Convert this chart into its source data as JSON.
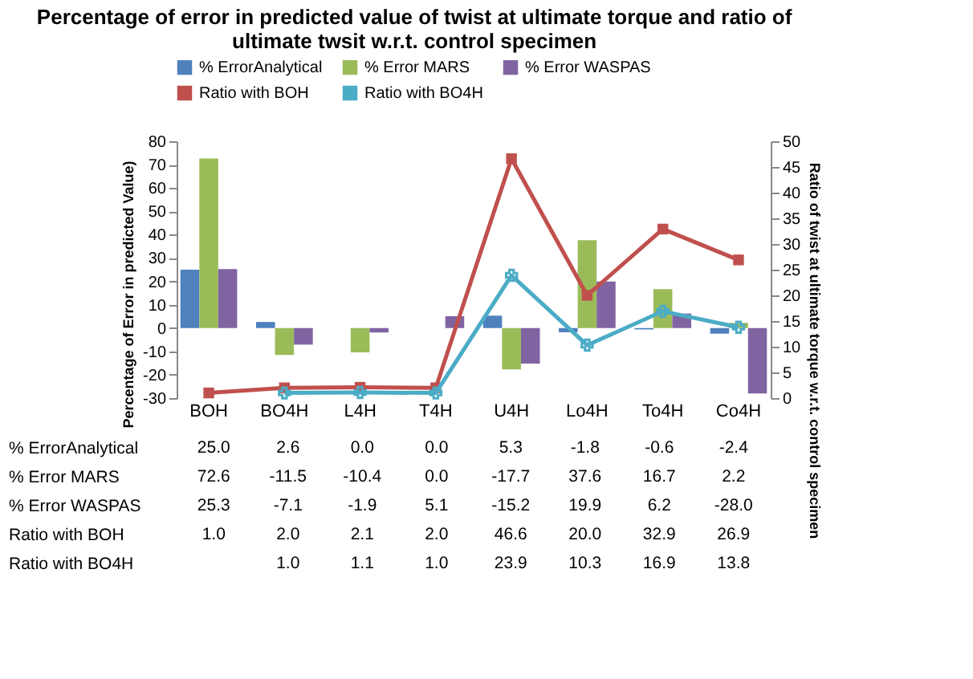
{
  "chart_data": {
    "type": "bar",
    "title": [
      "Percentage of error in predicted value of  twist at ultimate torque and ratio of",
      "ultimate twsit  w.r.t. control specimen"
    ],
    "ylabel": "Percentage of Error in predicted Value)",
    "y2label": "Ratio of  twist at ultimate torque  w.r.t. control specimen",
    "categories": [
      "BOH",
      "BO4H",
      "L4H",
      "T4H",
      "U4H",
      "Lo4H",
      "To4H",
      "Co4H"
    ],
    "series": [
      {
        "name": "% ErrorAnalytical",
        "color": "#4f81bd",
        "values": [
          25.0,
          2.6,
          0.0,
          0.0,
          5.3,
          -1.8,
          -0.6,
          -2.4
        ]
      },
      {
        "name": "% Error MARS",
        "color": "#9bbb59",
        "values": [
          72.6,
          -11.5,
          -10.4,
          0.0,
          -17.7,
          37.6,
          16.7,
          2.2
        ]
      },
      {
        "name": "% Error WASPAS",
        "color": "#8064a2",
        "values": [
          25.3,
          -7.1,
          -1.9,
          5.1,
          -15.2,
          19.9,
          6.2,
          -28.0
        ]
      },
      {
        "name": "Ratio with BOH",
        "color": "#c0504d",
        "type": "line",
        "axis": "y2",
        "marker": "square",
        "values": [
          1.0,
          2.0,
          2.1,
          2.0,
          46.6,
          20.0,
          32.9,
          26.9
        ]
      },
      {
        "name": "Ratio with BO4H",
        "color": "#4bacc6",
        "type": "line",
        "axis": "y2",
        "marker": "cross",
        "values": [
          null,
          1.0,
          1.1,
          1.0,
          23.9,
          10.3,
          16.9,
          13.8
        ]
      }
    ],
    "ylim": [
      -30,
      80
    ],
    "yticks": [
      -30,
      -20,
      -10,
      0,
      10,
      20,
      30,
      40,
      50,
      60,
      70,
      80
    ],
    "y2lim": [
      0,
      50
    ],
    "y2ticks": [
      0,
      5,
      10,
      15,
      20,
      25,
      30,
      35,
      40,
      45,
      50
    ],
    "value_labels": [
      [
        "25.0",
        "2.6",
        "0.0",
        "0.0",
        "5.3",
        "-1.8",
        "-0.6",
        "-2.4"
      ],
      [
        "72.6",
        "-11.5",
        "-10.4",
        "0.0",
        "-17.7",
        "37.6",
        "16.7",
        "2.2"
      ],
      [
        "25.3",
        "-7.1",
        "-1.9",
        "5.1",
        "-15.2",
        "19.9",
        "6.2",
        "-28.0"
      ],
      [
        "1.0",
        "2.0",
        "2.1",
        "2.0",
        "46.6",
        "20.0",
        "32.9",
        "26.9"
      ],
      [
        null,
        "1.0",
        "1.1",
        "1.0",
        "23.9",
        "10.3",
        "16.9",
        "13.8"
      ]
    ],
    "legend": "top",
    "grid": false
  }
}
